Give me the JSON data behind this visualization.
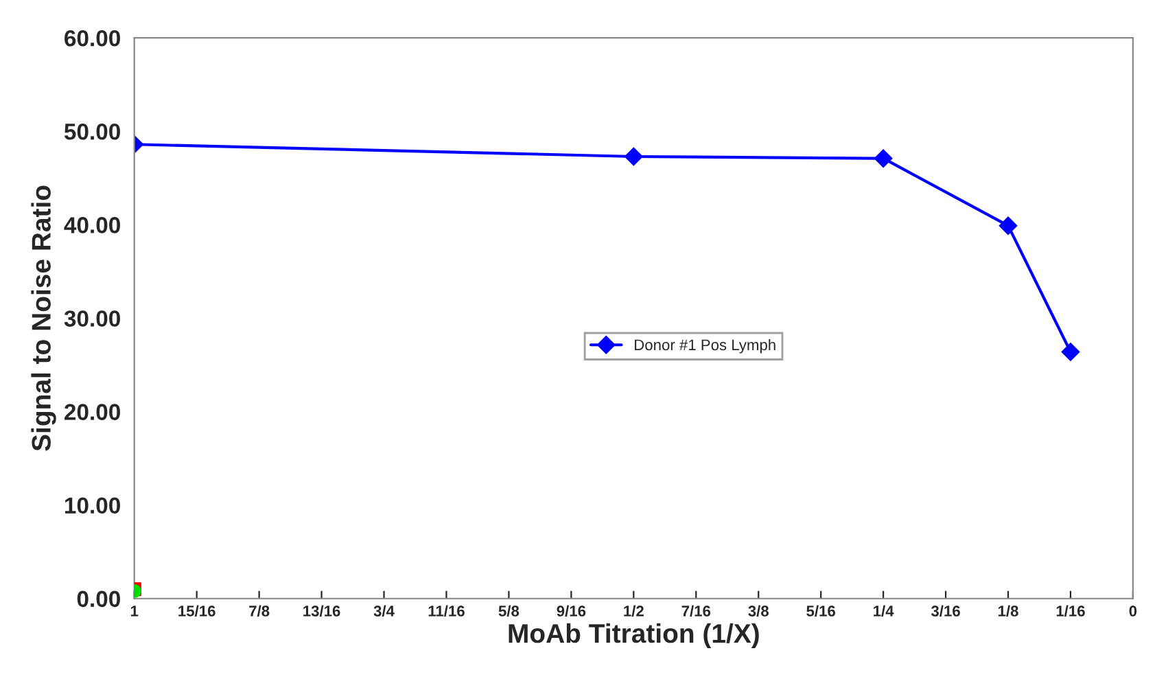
{
  "chart_data": {
    "type": "line",
    "xlabel": "MoAb Titration (1/X)",
    "ylabel": "Signal to Noise Ratio",
    "x": [
      1,
      0.5,
      0.25,
      0.125,
      0.0625
    ],
    "xlim": [
      1,
      0
    ],
    "xticks": [
      {
        "value": 1,
        "label": "1"
      },
      {
        "value": 0.9375,
        "label": "15/16"
      },
      {
        "value": 0.875,
        "label": "7/8"
      },
      {
        "value": 0.8125,
        "label": "13/16"
      },
      {
        "value": 0.75,
        "label": "3/4"
      },
      {
        "value": 0.6875,
        "label": "11/16"
      },
      {
        "value": 0.625,
        "label": "5/8"
      },
      {
        "value": 0.5625,
        "label": "9/16"
      },
      {
        "value": 0.5,
        "label": "1/2"
      },
      {
        "value": 0.4375,
        "label": "7/16"
      },
      {
        "value": 0.375,
        "label": "3/8"
      },
      {
        "value": 0.3125,
        "label": "5/16"
      },
      {
        "value": 0.25,
        "label": "1/4"
      },
      {
        "value": 0.1875,
        "label": "3/16"
      },
      {
        "value": 0.125,
        "label": "1/8"
      },
      {
        "value": 0.0625,
        "label": "1/16"
      },
      {
        "value": 0,
        "label": "0"
      }
    ],
    "ylim": [
      0,
      60
    ],
    "yticks": [
      {
        "value": 0,
        "label": "0.00"
      },
      {
        "value": 10,
        "label": "10.00"
      },
      {
        "value": 20,
        "label": "20.00"
      },
      {
        "value": 30,
        "label": "30.00"
      },
      {
        "value": 40,
        "label": "40.00"
      },
      {
        "value": 50,
        "label": "50.00"
      },
      {
        "value": 60,
        "label": "60.00"
      }
    ],
    "grid": false,
    "legend": "center",
    "series": [
      {
        "name": "Donor #1 Pos Lymph",
        "color": "#0000ff",
        "marker": "diamond",
        "values": [
          48.6,
          47.3,
          47.1,
          39.9,
          26.4
        ]
      },
      {
        "type": "scatter",
        "color": "#ff0000",
        "marker": "square",
        "x": [
          1
        ],
        "values": [
          1.0
        ]
      },
      {
        "type": "scatter",
        "color": "#00dd00",
        "marker": "circle",
        "x": [
          1
        ],
        "values": [
          0.8
        ]
      }
    ]
  }
}
